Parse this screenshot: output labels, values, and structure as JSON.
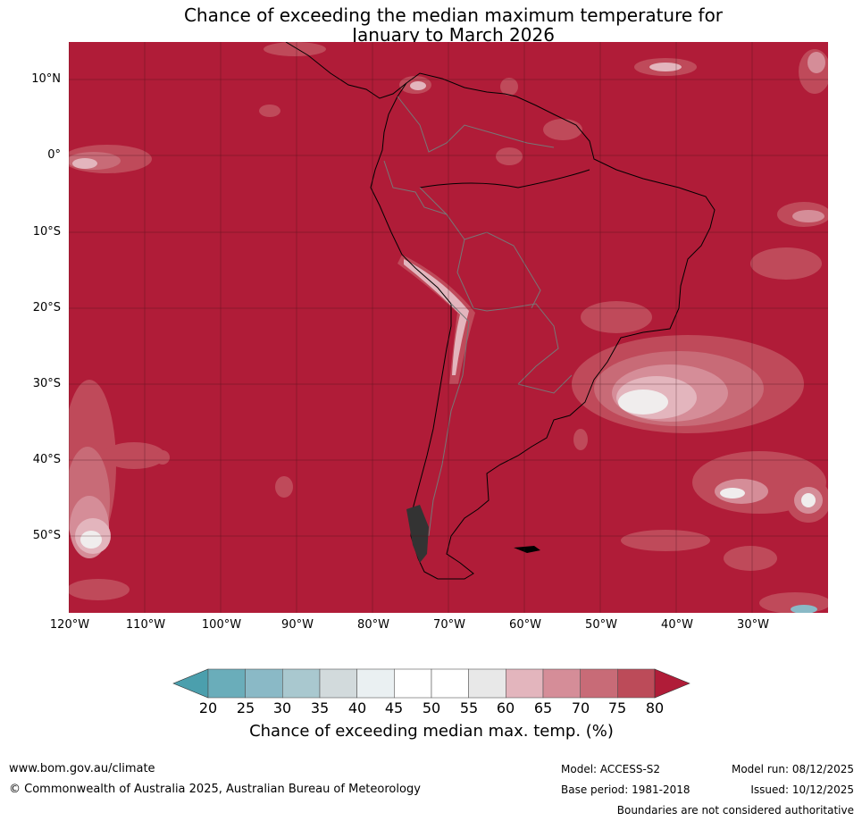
{
  "title_line1": "Chance of exceeding the median maximum temperature for",
  "title_line2": "January to March 2026",
  "lat_labels": [
    "10°N",
    "0°",
    "10°S",
    "20°S",
    "30°S",
    "40°S",
    "50°S"
  ],
  "lon_labels": [
    "120°W",
    "110°W",
    "100°W",
    "90°W",
    "80°W",
    "70°W",
    "60°W",
    "50°W",
    "40°W",
    "30°W"
  ],
  "colorbar": {
    "ticks": [
      "20",
      "25",
      "30",
      "35",
      "40",
      "45",
      "50",
      "55",
      "60",
      "65",
      "70",
      "75",
      "80"
    ],
    "colors": [
      "#4b9fad",
      "#6aadba",
      "#8ab9c6",
      "#a9c8cf",
      "#d2dadc",
      "#eaf0f2",
      "#ffffff",
      "#ffffff",
      "#e8e8e8",
      "#e3b5bd",
      "#d58d98",
      "#c86b77",
      "#bc4b59",
      "#b01c38"
    ],
    "label": "Chance of exceeding median max. temp. (%)"
  },
  "map_colors": {
    "background": "#b01c38",
    "band75": "#bf4a5a",
    "band70": "#c86b77",
    "band65": "#d58d98",
    "band60": "#e3b5bd",
    "band55": "#f0eded",
    "low_teal": "#8ab9c6"
  },
  "footer": {
    "website": "www.bom.gov.au/climate",
    "copyright": "© Commonwealth of Australia 2025, Australian Bureau of Meteorology",
    "model": "Model: ACCESS-S2",
    "base_period": "Base period: 1981-2018",
    "model_run": "Model run: 08/12/2025",
    "issued": "Issued: 10/12/2025",
    "boundaries": "Boundaries are not considered authoritative"
  }
}
